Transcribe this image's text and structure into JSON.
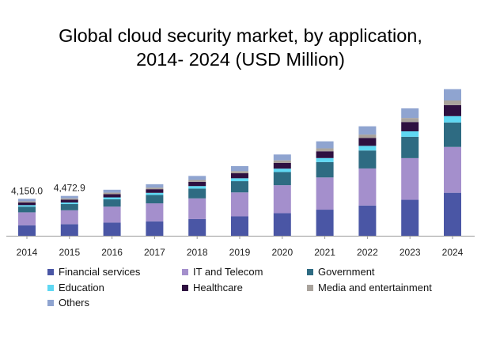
{
  "chart_data": {
    "type": "bar",
    "stacked": true,
    "title": "Global cloud security market, by application, 2014- 2024 (USD Million)",
    "title_lines": [
      "Global cloud security market, by application,",
      "2014- 2024 (USD Million)"
    ],
    "xlabel": "",
    "ylabel": "",
    "ylim": [
      0,
      16000
    ],
    "categories": [
      "2014",
      "2015",
      "2016",
      "2017",
      "2018",
      "2019",
      "2020",
      "2021",
      "2022",
      "2023",
      "2024"
    ],
    "series": [
      {
        "name": "Financial services",
        "color": "#4a56a5",
        "values": [
          1180,
          1300,
          1470,
          1620,
          1870,
          2180,
          2540,
          2930,
          3400,
          4040,
          4830
        ]
      },
      {
        "name": "IT and Telecom",
        "color": "#a48fcc",
        "values": [
          1450,
          1560,
          1800,
          2020,
          2330,
          2690,
          3140,
          3620,
          4160,
          4680,
          5150
        ]
      },
      {
        "name": "Government",
        "color": "#2e6b82",
        "values": [
          640,
          700,
          830,
          940,
          1100,
          1260,
          1480,
          1730,
          2020,
          2400,
          2750
        ]
      },
      {
        "name": "Education",
        "color": "#5fd8f3",
        "values": [
          170,
          180,
          210,
          240,
          280,
          330,
          380,
          450,
          520,
          610,
          710
        ]
      },
      {
        "name": "Healthcare",
        "color": "#2e1040",
        "values": [
          300,
          320,
          370,
          410,
          480,
          560,
          650,
          760,
          890,
          1050,
          1240
        ]
      },
      {
        "name": "Media and entertainment",
        "color": "#a9a39c",
        "values": [
          130,
          140,
          160,
          180,
          210,
          240,
          280,
          330,
          380,
          450,
          520
        ]
      },
      {
        "name": "Others",
        "color": "#8fa4d0",
        "values": [
          280,
          273,
          330,
          380,
          450,
          560,
          660,
          790,
          930,
          1080,
          1270
        ]
      }
    ],
    "data_labels": [
      {
        "category": "2014",
        "text": "4,150.0"
      },
      {
        "category": "2015",
        "text": "4,472.9"
      }
    ],
    "legend_position": "bottom",
    "grid": false
  }
}
